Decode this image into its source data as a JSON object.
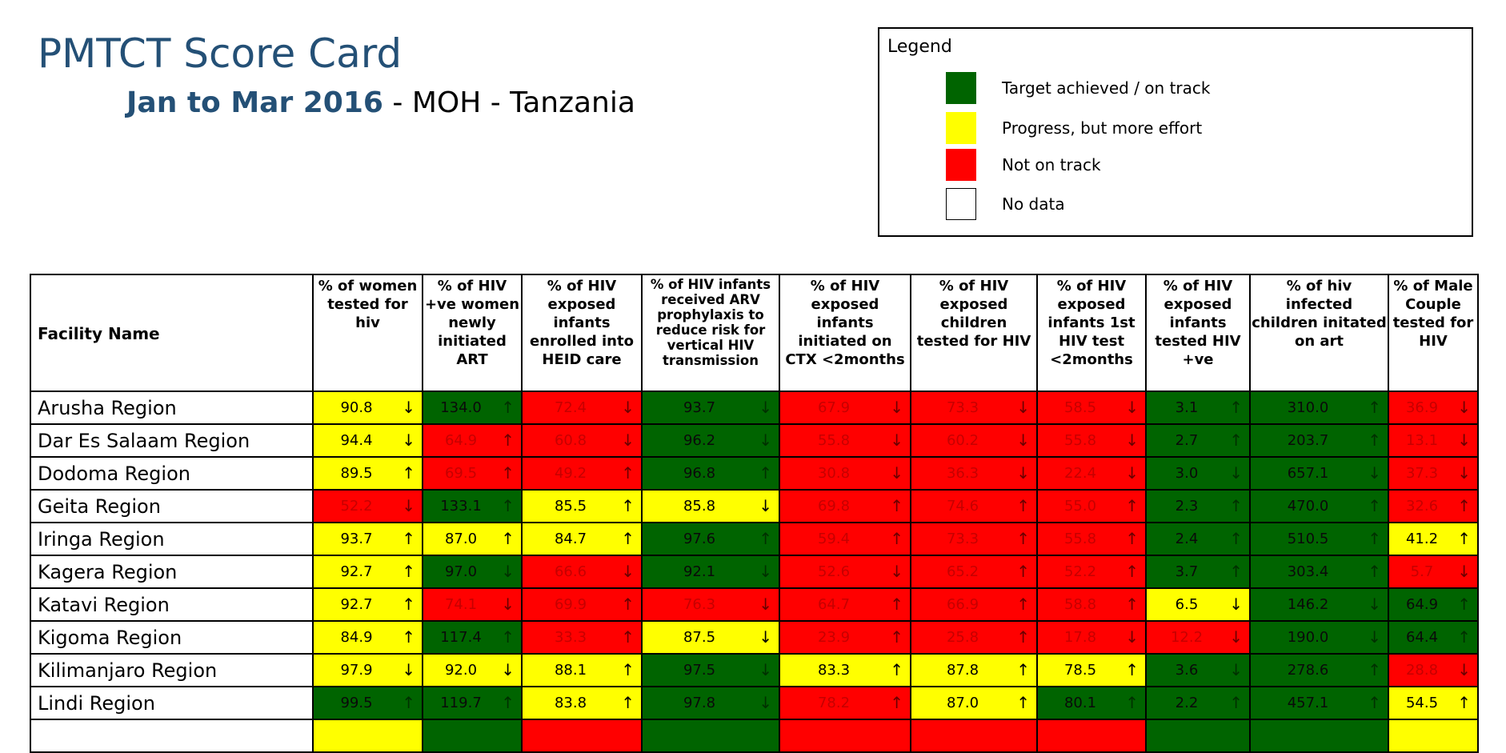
{
  "header": {
    "title": "PMTCT Score Card",
    "period": "Jan to Mar 2016",
    "suffix": " - MOH - Tanzania"
  },
  "legend": {
    "title": "Legend",
    "items": [
      {
        "label": "Target achieved / on track",
        "color": "#006400"
      },
      {
        "label": "Progress, but more effort",
        "color": "#ffff00"
      },
      {
        "label": "Not on track",
        "color": "#ff0000"
      },
      {
        "label": "No data",
        "color": "#ffffff"
      }
    ]
  },
  "table": {
    "name_header": "Facility Name",
    "columns": [
      "% of women tested for hiv",
      "% of HIV +ve women newly initiated ART",
      "% of HIV exposed infants enrolled into HEID care",
      "% of HIV infants received ARV prophylaxis to reduce risk for vertical HIV transmission",
      "% of HIV exposed infants initiated on CTX <2months",
      "% of HIV exposed children tested for HIV",
      "% of HIV exposed infants 1st HIV test <2months",
      "% of HIV exposed infants tested HIV +ve",
      "% of hiv infected children initated on art",
      "% of Male Couple tested for HIV"
    ],
    "rows": [
      {
        "name": "Arusha Region",
        "cells": [
          {
            "v": "90.8",
            "s": "y",
            "t": "down"
          },
          {
            "v": "134.0",
            "s": "g",
            "t": "up"
          },
          {
            "v": "72.4",
            "s": "r",
            "t": "down"
          },
          {
            "v": "93.7",
            "s": "g",
            "t": "down"
          },
          {
            "v": "67.9",
            "s": "r",
            "t": "down"
          },
          {
            "v": "73.3",
            "s": "r",
            "t": "down"
          },
          {
            "v": "58.5",
            "s": "r",
            "t": "down"
          },
          {
            "v": "3.1",
            "s": "g",
            "t": "up"
          },
          {
            "v": "310.0",
            "s": "g",
            "t": "up"
          },
          {
            "v": "36.9",
            "s": "r",
            "t": "down"
          }
        ]
      },
      {
        "name": "Dar Es Salaam Region",
        "cells": [
          {
            "v": "94.4",
            "s": "y",
            "t": "down"
          },
          {
            "v": "64.9",
            "s": "r",
            "t": "up"
          },
          {
            "v": "60.8",
            "s": "r",
            "t": "down"
          },
          {
            "v": "96.2",
            "s": "g",
            "t": "down"
          },
          {
            "v": "55.8",
            "s": "r",
            "t": "down"
          },
          {
            "v": "60.2",
            "s": "r",
            "t": "down"
          },
          {
            "v": "55.8",
            "s": "r",
            "t": "down"
          },
          {
            "v": "2.7",
            "s": "g",
            "t": "up"
          },
          {
            "v": "203.7",
            "s": "g",
            "t": "up"
          },
          {
            "v": "13.1",
            "s": "r",
            "t": "down"
          }
        ]
      },
      {
        "name": "Dodoma Region",
        "cells": [
          {
            "v": "89.5",
            "s": "y",
            "t": "up"
          },
          {
            "v": "69.5",
            "s": "r",
            "t": "up"
          },
          {
            "v": "49.2",
            "s": "r",
            "t": "up"
          },
          {
            "v": "96.8",
            "s": "g",
            "t": "up"
          },
          {
            "v": "30.8",
            "s": "r",
            "t": "down"
          },
          {
            "v": "36.3",
            "s": "r",
            "t": "down"
          },
          {
            "v": "22.4",
            "s": "r",
            "t": "down"
          },
          {
            "v": "3.0",
            "s": "g",
            "t": "down"
          },
          {
            "v": "657.1",
            "s": "g",
            "t": "down"
          },
          {
            "v": "37.3",
            "s": "r",
            "t": "down"
          }
        ]
      },
      {
        "name": "Geita Region",
        "cells": [
          {
            "v": "52.2",
            "s": "r",
            "t": "down"
          },
          {
            "v": "133.1",
            "s": "g",
            "t": "up"
          },
          {
            "v": "85.5",
            "s": "y",
            "t": "up"
          },
          {
            "v": "85.8",
            "s": "y",
            "t": "down"
          },
          {
            "v": "69.8",
            "s": "r",
            "t": "up"
          },
          {
            "v": "74.6",
            "s": "r",
            "t": "up"
          },
          {
            "v": "55.0",
            "s": "r",
            "t": "up"
          },
          {
            "v": "2.3",
            "s": "g",
            "t": "up"
          },
          {
            "v": "470.0",
            "s": "g",
            "t": "up"
          },
          {
            "v": "32.6",
            "s": "r",
            "t": "up"
          }
        ]
      },
      {
        "name": "Iringa Region",
        "cells": [
          {
            "v": "93.7",
            "s": "y",
            "t": "up"
          },
          {
            "v": "87.0",
            "s": "y",
            "t": "up"
          },
          {
            "v": "84.7",
            "s": "y",
            "t": "up"
          },
          {
            "v": "97.6",
            "s": "g",
            "t": "up"
          },
          {
            "v": "59.4",
            "s": "r",
            "t": "up"
          },
          {
            "v": "73.3",
            "s": "r",
            "t": "up"
          },
          {
            "v": "55.8",
            "s": "r",
            "t": "up"
          },
          {
            "v": "2.4",
            "s": "g",
            "t": "up"
          },
          {
            "v": "510.5",
            "s": "g",
            "t": "up"
          },
          {
            "v": "41.2",
            "s": "y",
            "t": "up"
          }
        ]
      },
      {
        "name": "Kagera Region",
        "cells": [
          {
            "v": "92.7",
            "s": "y",
            "t": "up"
          },
          {
            "v": "97.0",
            "s": "g",
            "t": "down"
          },
          {
            "v": "66.6",
            "s": "r",
            "t": "down"
          },
          {
            "v": "92.1",
            "s": "g",
            "t": "down"
          },
          {
            "v": "52.6",
            "s": "r",
            "t": "down"
          },
          {
            "v": "65.2",
            "s": "r",
            "t": "up"
          },
          {
            "v": "52.2",
            "s": "r",
            "t": "up"
          },
          {
            "v": "3.7",
            "s": "g",
            "t": "up"
          },
          {
            "v": "303.4",
            "s": "g",
            "t": "up"
          },
          {
            "v": "5.7",
            "s": "r",
            "t": "down"
          }
        ]
      },
      {
        "name": "Katavi Region",
        "cells": [
          {
            "v": "92.7",
            "s": "y",
            "t": "up"
          },
          {
            "v": "74.1",
            "s": "r",
            "t": "down"
          },
          {
            "v": "69.9",
            "s": "r",
            "t": "up"
          },
          {
            "v": "76.3",
            "s": "r",
            "t": "down"
          },
          {
            "v": "64.7",
            "s": "r",
            "t": "up"
          },
          {
            "v": "66.9",
            "s": "r",
            "t": "up"
          },
          {
            "v": "58.8",
            "s": "r",
            "t": "up"
          },
          {
            "v": "6.5",
            "s": "y",
            "t": "down"
          },
          {
            "v": "146.2",
            "s": "g",
            "t": "down"
          },
          {
            "v": "64.9",
            "s": "g",
            "t": "up"
          }
        ]
      },
      {
        "name": "Kigoma Region",
        "cells": [
          {
            "v": "84.9",
            "s": "y",
            "t": "up"
          },
          {
            "v": "117.4",
            "s": "g",
            "t": "up"
          },
          {
            "v": "33.3",
            "s": "r",
            "t": "up"
          },
          {
            "v": "87.5",
            "s": "y",
            "t": "down"
          },
          {
            "v": "23.9",
            "s": "r",
            "t": "up"
          },
          {
            "v": "25.8",
            "s": "r",
            "t": "up"
          },
          {
            "v": "17.8",
            "s": "r",
            "t": "down"
          },
          {
            "v": "12.2",
            "s": "r",
            "t": "down"
          },
          {
            "v": "190.0",
            "s": "g",
            "t": "down"
          },
          {
            "v": "64.4",
            "s": "g",
            "t": "up"
          }
        ]
      },
      {
        "name": "Kilimanjaro Region",
        "cells": [
          {
            "v": "97.9",
            "s": "y",
            "t": "down"
          },
          {
            "v": "92.0",
            "s": "y",
            "t": "down"
          },
          {
            "v": "88.1",
            "s": "y",
            "t": "up"
          },
          {
            "v": "97.5",
            "s": "g",
            "t": "down"
          },
          {
            "v": "83.3",
            "s": "y",
            "t": "up"
          },
          {
            "v": "87.8",
            "s": "y",
            "t": "up"
          },
          {
            "v": "78.5",
            "s": "y",
            "t": "up"
          },
          {
            "v": "3.6",
            "s": "g",
            "t": "down"
          },
          {
            "v": "278.6",
            "s": "g",
            "t": "up"
          },
          {
            "v": "28.8",
            "s": "r",
            "t": "down"
          }
        ]
      },
      {
        "name": "Lindi Region",
        "cells": [
          {
            "v": "99.5",
            "s": "g",
            "t": "up"
          },
          {
            "v": "119.7",
            "s": "g",
            "t": "up"
          },
          {
            "v": "83.8",
            "s": "y",
            "t": "up"
          },
          {
            "v": "97.8",
            "s": "g",
            "t": "down"
          },
          {
            "v": "78.2",
            "s": "r",
            "t": "up"
          },
          {
            "v": "87.0",
            "s": "y",
            "t": "up"
          },
          {
            "v": "80.1",
            "s": "g",
            "t": "up"
          },
          {
            "v": "2.2",
            "s": "g",
            "t": "up"
          },
          {
            "v": "457.1",
            "s": "g",
            "t": "up"
          },
          {
            "v": "54.5",
            "s": "y",
            "t": "up"
          }
        ]
      },
      {
        "name": "",
        "cells": [
          {
            "v": "",
            "s": "y",
            "t": ""
          },
          {
            "v": "",
            "s": "g",
            "t": ""
          },
          {
            "v": "",
            "s": "r",
            "t": ""
          },
          {
            "v": "",
            "s": "g",
            "t": ""
          },
          {
            "v": "",
            "s": "r",
            "t": ""
          },
          {
            "v": "",
            "s": "r",
            "t": ""
          },
          {
            "v": "",
            "s": "r",
            "t": ""
          },
          {
            "v": "",
            "s": "g",
            "t": ""
          },
          {
            "v": "",
            "s": "g",
            "t": ""
          },
          {
            "v": "",
            "s": "y",
            "t": ""
          }
        ]
      }
    ],
    "arrow_glyphs": {
      "up": "↑",
      "down": "↓"
    }
  }
}
